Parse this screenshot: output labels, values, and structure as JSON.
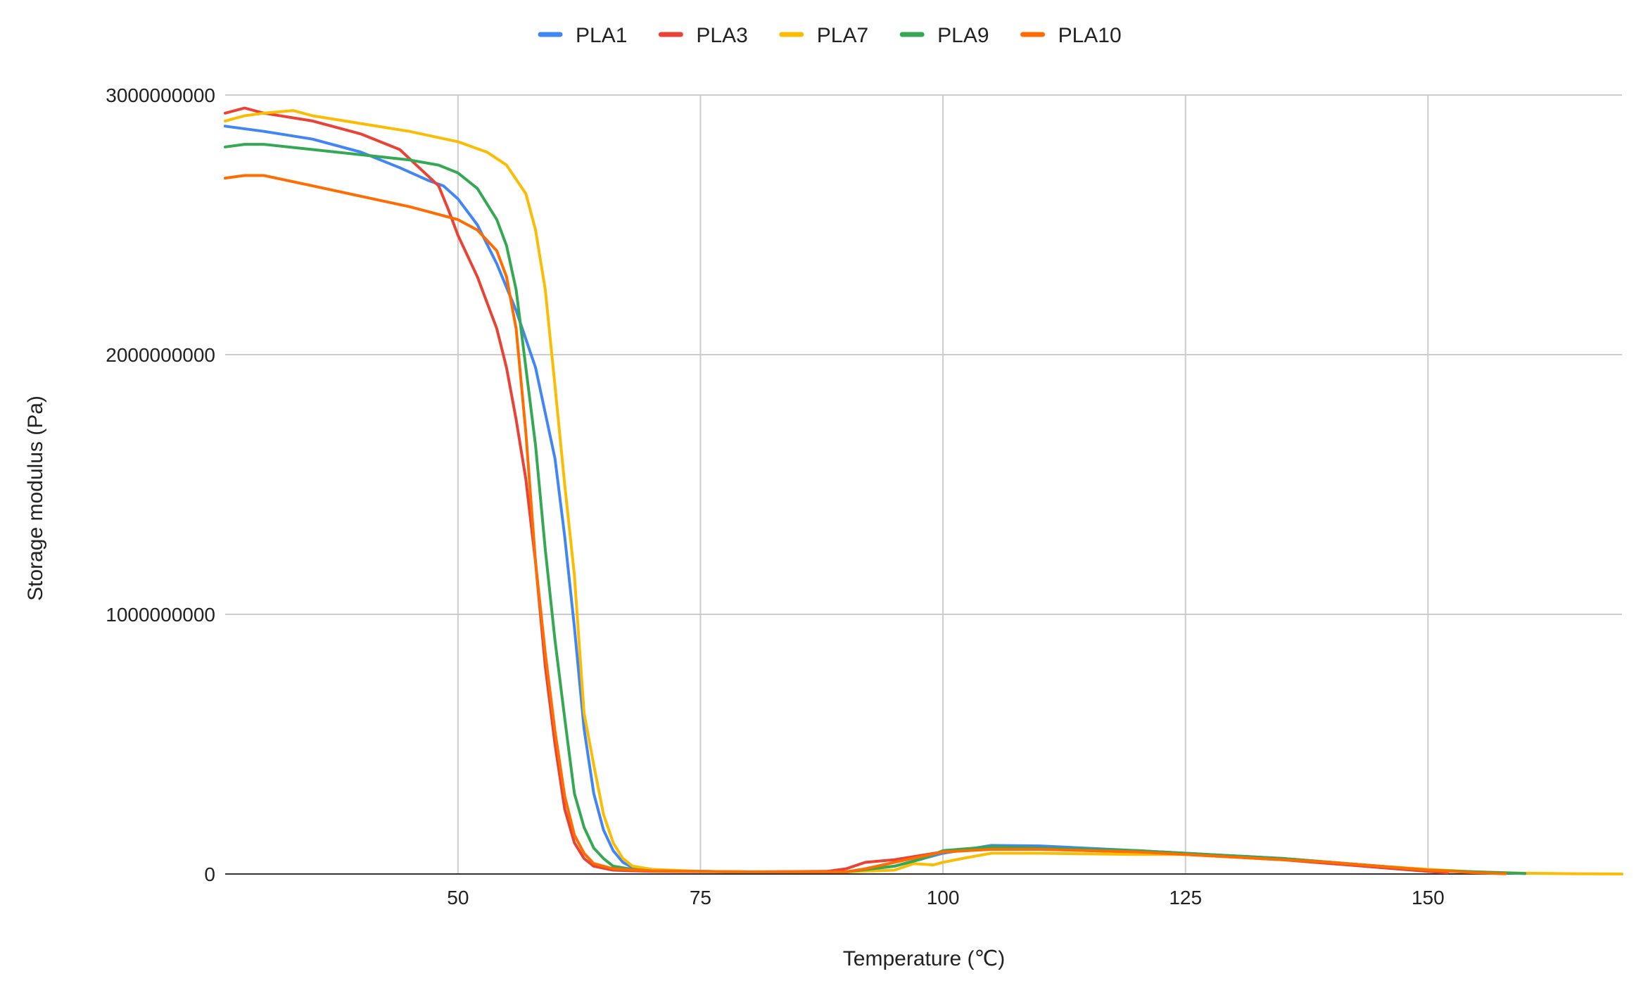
{
  "chart_data": {
    "type": "line",
    "title": "",
    "xlabel": "Temperature (℃)",
    "ylabel": "Storage modulus (Pa)",
    "xlim": [
      26,
      170
    ],
    "ylim": [
      0,
      3000000000
    ],
    "x_ticks": [
      50,
      75,
      100,
      125,
      150
    ],
    "y_ticks": [
      0,
      1000000000,
      2000000000,
      3000000000
    ],
    "x_tick_labels": [
      "50",
      "75",
      "100",
      "125",
      "150"
    ],
    "y_tick_labels": [
      "0",
      "1000000000",
      "2000000000",
      "3000000000"
    ],
    "grid": true,
    "legend_position": "top",
    "series": [
      {
        "name": "PLA1",
        "color": "#4285F4",
        "points": [
          [
            26,
            2880000000
          ],
          [
            30,
            2860000000
          ],
          [
            35,
            2830000000
          ],
          [
            40,
            2780000000
          ],
          [
            44,
            2720000000
          ],
          [
            47,
            2670000000
          ],
          [
            48.5,
            2650000000
          ],
          [
            50,
            2600000000
          ],
          [
            52,
            2500000000
          ],
          [
            54,
            2350000000
          ],
          [
            56,
            2170000000
          ],
          [
            58,
            1950000000
          ],
          [
            60,
            1600000000
          ],
          [
            61,
            1300000000
          ],
          [
            62,
            950000000
          ],
          [
            63,
            560000000
          ],
          [
            64,
            310000000
          ],
          [
            65,
            170000000
          ],
          [
            66,
            90000000
          ],
          [
            67,
            45000000
          ],
          [
            68,
            25000000
          ],
          [
            70,
            15000000
          ],
          [
            75,
            10000000
          ],
          [
            80,
            8000000
          ],
          [
            90,
            8000000
          ],
          [
            95,
            30000000
          ],
          [
            100,
            80000000
          ],
          [
            105,
            110000000
          ],
          [
            110,
            108000000
          ],
          [
            120,
            90000000
          ],
          [
            125,
            80000000
          ],
          [
            130,
            70000000
          ],
          [
            135,
            60000000
          ],
          [
            140,
            45000000
          ],
          [
            145,
            30000000
          ],
          [
            150,
            15000000
          ],
          [
            155,
            7000000
          ],
          [
            160,
            2000000
          ]
        ]
      },
      {
        "name": "PLA3",
        "color": "#EA4335",
        "points": [
          [
            26,
            2930000000
          ],
          [
            28,
            2950000000
          ],
          [
            30,
            2930000000
          ],
          [
            35,
            2900000000
          ],
          [
            40,
            2850000000
          ],
          [
            44,
            2790000000
          ],
          [
            46,
            2720000000
          ],
          [
            48,
            2650000000
          ],
          [
            49,
            2560000000
          ],
          [
            50,
            2460000000
          ],
          [
            52,
            2300000000
          ],
          [
            54,
            2100000000
          ],
          [
            55,
            1950000000
          ],
          [
            56,
            1750000000
          ],
          [
            57,
            1520000000
          ],
          [
            58,
            1200000000
          ],
          [
            59,
            800000000
          ],
          [
            60,
            500000000
          ],
          [
            61,
            250000000
          ],
          [
            62,
            120000000
          ],
          [
            63,
            60000000
          ],
          [
            64,
            30000000
          ],
          [
            66,
            15000000
          ],
          [
            70,
            10000000
          ],
          [
            80,
            8000000
          ],
          [
            88,
            10000000
          ],
          [
            90,
            20000000
          ],
          [
            92,
            45000000
          ],
          [
            95,
            55000000
          ],
          [
            100,
            85000000
          ],
          [
            105,
            95000000
          ],
          [
            110,
            95000000
          ],
          [
            120,
            85000000
          ],
          [
            125,
            75000000
          ],
          [
            130,
            65000000
          ],
          [
            135,
            55000000
          ],
          [
            140,
            40000000
          ],
          [
            145,
            25000000
          ],
          [
            150,
            10000000
          ],
          [
            152,
            5000000
          ]
        ]
      },
      {
        "name": "PLA7",
        "color": "#FBBC04",
        "points": [
          [
            26,
            2900000000
          ],
          [
            28,
            2920000000
          ],
          [
            30,
            2930000000
          ],
          [
            33,
            2940000000
          ],
          [
            35,
            2920000000
          ],
          [
            40,
            2890000000
          ],
          [
            45,
            2860000000
          ],
          [
            50,
            2820000000
          ],
          [
            53,
            2780000000
          ],
          [
            55,
            2730000000
          ],
          [
            57,
            2620000000
          ],
          [
            58,
            2480000000
          ],
          [
            59,
            2250000000
          ],
          [
            60,
            1880000000
          ],
          [
            61,
            1500000000
          ],
          [
            62,
            1150000000
          ],
          [
            63,
            620000000
          ],
          [
            64,
            420000000
          ],
          [
            65,
            230000000
          ],
          [
            66,
            120000000
          ],
          [
            67,
            60000000
          ],
          [
            68,
            30000000
          ],
          [
            70,
            18000000
          ],
          [
            75,
            10000000
          ],
          [
            80,
            8000000
          ],
          [
            90,
            8000000
          ],
          [
            95,
            15000000
          ],
          [
            97,
            40000000
          ],
          [
            99,
            35000000
          ],
          [
            100,
            45000000
          ],
          [
            102,
            60000000
          ],
          [
            105,
            80000000
          ],
          [
            110,
            80000000
          ],
          [
            120,
            75000000
          ],
          [
            125,
            75000000
          ],
          [
            130,
            65000000
          ],
          [
            135,
            60000000
          ],
          [
            140,
            45000000
          ],
          [
            145,
            30000000
          ],
          [
            150,
            18000000
          ],
          [
            155,
            8000000
          ],
          [
            160,
            3000000
          ],
          [
            165,
            1000000
          ],
          [
            170,
            0
          ]
        ]
      },
      {
        "name": "PLA9",
        "color": "#34A853",
        "points": [
          [
            26,
            2800000000
          ],
          [
            28,
            2810000000
          ],
          [
            30,
            2810000000
          ],
          [
            35,
            2790000000
          ],
          [
            40,
            2770000000
          ],
          [
            45,
            2750000000
          ],
          [
            48,
            2730000000
          ],
          [
            50,
            2700000000
          ],
          [
            52,
            2640000000
          ],
          [
            54,
            2520000000
          ],
          [
            55,
            2420000000
          ],
          [
            56,
            2250000000
          ],
          [
            57,
            1950000000
          ],
          [
            58,
            1650000000
          ],
          [
            59,
            1250000000
          ],
          [
            60,
            900000000
          ],
          [
            61,
            600000000
          ],
          [
            62,
            310000000
          ],
          [
            63,
            180000000
          ],
          [
            64,
            100000000
          ],
          [
            65,
            60000000
          ],
          [
            66,
            30000000
          ],
          [
            68,
            18000000
          ],
          [
            70,
            12000000
          ],
          [
            75,
            10000000
          ],
          [
            80,
            8000000
          ],
          [
            90,
            8000000
          ],
          [
            95,
            30000000
          ],
          [
            98,
            60000000
          ],
          [
            100,
            90000000
          ],
          [
            105,
            105000000
          ],
          [
            110,
            100000000
          ],
          [
            120,
            90000000
          ],
          [
            125,
            80000000
          ],
          [
            130,
            70000000
          ],
          [
            135,
            60000000
          ],
          [
            140,
            45000000
          ],
          [
            145,
            30000000
          ],
          [
            150,
            15000000
          ],
          [
            155,
            8000000
          ],
          [
            160,
            2000000
          ]
        ]
      },
      {
        "name": "PLA10",
        "color": "#FF6D01",
        "points": [
          [
            26,
            2680000000
          ],
          [
            28,
            2690000000
          ],
          [
            30,
            2690000000
          ],
          [
            35,
            2650000000
          ],
          [
            40,
            2610000000
          ],
          [
            45,
            2570000000
          ],
          [
            48,
            2540000000
          ],
          [
            50,
            2520000000
          ],
          [
            52,
            2480000000
          ],
          [
            54,
            2400000000
          ],
          [
            55,
            2300000000
          ],
          [
            56,
            2100000000
          ],
          [
            57,
            1700000000
          ],
          [
            58,
            1200000000
          ],
          [
            59,
            850000000
          ],
          [
            60,
            550000000
          ],
          [
            61,
            300000000
          ],
          [
            62,
            150000000
          ],
          [
            63,
            80000000
          ],
          [
            64,
            40000000
          ],
          [
            66,
            20000000
          ],
          [
            70,
            12000000
          ],
          [
            75,
            10000000
          ],
          [
            80,
            8000000
          ],
          [
            90,
            8000000
          ],
          [
            92,
            20000000
          ],
          [
            95,
            45000000
          ],
          [
            100,
            85000000
          ],
          [
            105,
            95000000
          ],
          [
            110,
            95000000
          ],
          [
            120,
            85000000
          ],
          [
            125,
            75000000
          ],
          [
            130,
            65000000
          ],
          [
            135,
            55000000
          ],
          [
            140,
            45000000
          ],
          [
            145,
            30000000
          ],
          [
            150,
            15000000
          ],
          [
            155,
            5000000
          ],
          [
            158,
            1000000
          ]
        ]
      }
    ]
  }
}
